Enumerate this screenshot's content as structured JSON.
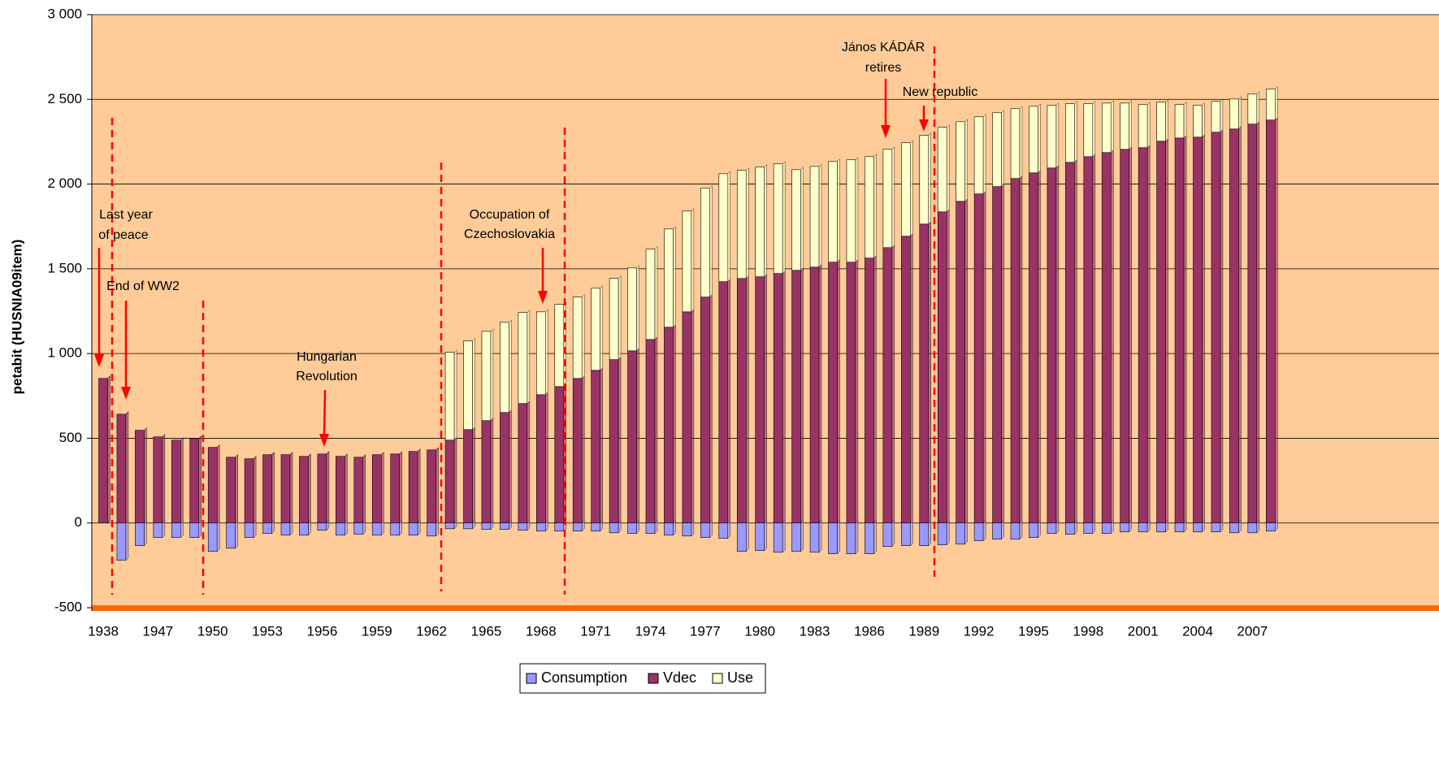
{
  "chart_data": {
    "type": "bar",
    "y_label": "petabit (HUSNIA09item)",
    "categories": [
      "1938",
      null,
      null,
      "1947",
      null,
      null,
      "1950",
      null,
      null,
      "1953",
      null,
      null,
      "1956",
      null,
      null,
      "1959",
      null,
      null,
      "1962",
      null,
      null,
      "1965",
      null,
      null,
      "1968",
      null,
      null,
      "1971",
      null,
      null,
      "1974",
      null,
      null,
      "1977",
      null,
      null,
      "1980",
      null,
      null,
      "1983",
      null,
      null,
      "1986",
      null,
      null,
      "1989",
      null,
      null,
      "1992",
      null,
      null,
      "1995",
      null,
      null,
      "1998",
      null,
      null,
      "2001",
      null,
      null,
      "2004",
      null,
      null,
      "2007",
      null
    ],
    "series": [
      {
        "name": "Consumption",
        "color": "#9999ff",
        "values": [
          0,
          -220,
          -134,
          -86,
          -86,
          -86,
          -168,
          -149,
          -86,
          -62,
          -72,
          -72,
          -43,
          -72,
          -67,
          -72,
          -72,
          -72,
          -77,
          -34,
          -34,
          -38,
          -38,
          -43,
          -48,
          -48,
          -48,
          -48,
          -58,
          -62,
          -62,
          -72,
          -77,
          -86,
          -91,
          -168,
          -163,
          -173,
          -168,
          -173,
          -182,
          -182,
          -182,
          -139,
          -134,
          -134,
          -129,
          -125,
          -105,
          -96,
          -96,
          -86,
          -62,
          -67,
          -62,
          -62,
          -53,
          -53,
          -53,
          -53,
          -53,
          -53,
          -58,
          -58,
          -48
        ]
      },
      {
        "name": "Vdec",
        "color": "#993366",
        "values": [
          853,
          642,
          547,
          508,
          489,
          499,
          446,
          388,
          379,
          403,
          403,
          393,
          407,
          393,
          388,
          403,
          407,
          422,
          431,
          489,
          551,
          604,
          652,
          705,
          757,
          805,
          853,
          901,
          964,
          1016,
          1083,
          1155,
          1246,
          1333,
          1424,
          1443,
          1453,
          1472,
          1491,
          1510,
          1539,
          1539,
          1563,
          1625,
          1692,
          1764,
          1836,
          1898,
          1942,
          1985,
          2033,
          2066,
          2095,
          2128,
          2162,
          2186,
          2205,
          2215,
          2253,
          2272,
          2277,
          2306,
          2325,
          2354,
          2378
        ]
      },
      {
        "name": "Use",
        "color": "#ffffcc",
        "values": [
          0,
          0,
          0,
          0,
          0,
          0,
          0,
          0,
          0,
          0,
          0,
          0,
          0,
          0,
          0,
          0,
          0,
          0,
          0,
          518,
          523,
          527,
          532,
          537,
          489,
          485,
          480,
          484,
          479,
          489,
          533,
          580,
          595,
          642,
          637,
          638,
          647,
          647,
          594,
          594,
          594,
          604,
          599,
          580,
          552,
          523,
          499,
          470,
          455,
          436,
          412,
          393,
          369,
          346,
          312,
          292,
          273,
          254,
          230,
          197,
          187,
          182,
          177,
          177,
          182
        ]
      }
    ],
    "ylim": [
      -500,
      3000
    ],
    "yticks": [
      -500,
      0,
      500,
      {
        "value": 1000,
        "label": "1 000"
      },
      {
        "value": 1500,
        "label": "1 500"
      },
      {
        "value": 2000,
        "label": "2 000"
      },
      {
        "value": 2500,
        "label": "2 500"
      },
      {
        "value": 3000,
        "label": "3 000"
      }
    ],
    "grid": true,
    "legend": "bottom",
    "annotations": [
      {
        "lines": [
          "Last year",
          "of peace"
        ]
      },
      {
        "lines": [
          "End of WW2"
        ]
      },
      {
        "lines": [
          "Hungarian",
          "Revolution"
        ]
      },
      {
        "lines": [
          "Occupation of",
          "Czechoslovakia"
        ]
      },
      {
        "lines": [
          "János KÁDÁR",
          "retires"
        ]
      },
      {
        "lines": [
          "New  republic"
        ]
      }
    ]
  }
}
